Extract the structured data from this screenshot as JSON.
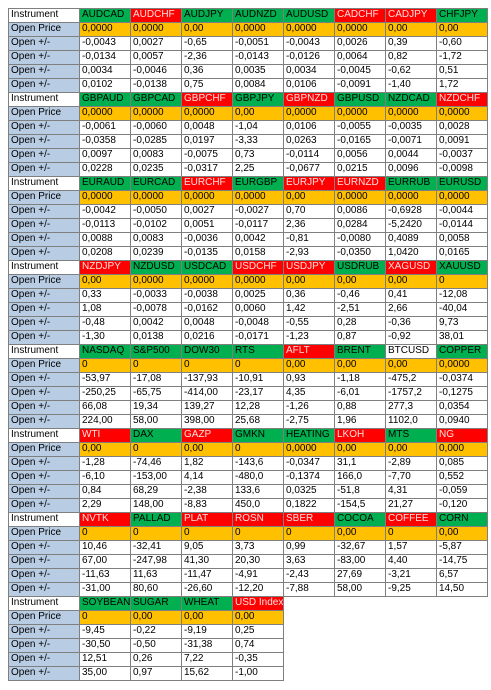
{
  "blocks": [
    {
      "header": [
        "Instrument",
        "AUDCAD",
        "AUDCHF",
        "AUDJPY",
        "AUDNZD",
        "AUDUSD",
        "CADCHF",
        "CADJPY",
        "CHFJPY"
      ],
      "header_colors": [
        "#ffffff",
        "#00b050",
        "#ff0000",
        "#00b050",
        "#00b050",
        "#00b050",
        "#ff0000",
        "#ff0000",
        "#00b050"
      ],
      "rows": [
        [
          "Open Price",
          "0,0000",
          "0,0000",
          "0,00",
          "0,0000",
          "0,0000",
          "0,0000",
          "0,00",
          "0,00"
        ],
        [
          "Open +/-",
          "-0,0043",
          "0,0027",
          "-0,65",
          "-0,0051",
          "-0,0043",
          "0,0026",
          "0,39",
          "-0,60"
        ],
        [
          "Open +/-",
          "-0,0134",
          "0,0057",
          "-2,36",
          "-0,0143",
          "-0,0126",
          "0,0064",
          "0,82",
          "-1,72"
        ],
        [
          "Open +/-",
          "0,0034",
          "-0,0046",
          "0,36",
          "0,0035",
          "0,0034",
          "-0,0045",
          "-0,62",
          "0,51"
        ],
        [
          "Open +/-",
          "0,0102",
          "-0,0138",
          "0,75",
          "0,0084",
          "0,0106",
          "-0,0091",
          "-1,40",
          "1,72"
        ]
      ]
    },
    {
      "header": [
        "Instrument",
        "GBPAUD",
        "GBPCAD",
        "GBPCHF",
        "GBPJPY",
        "GBPNZD",
        "GBPUSD",
        "NZDCAD",
        "NZDCHF"
      ],
      "header_colors": [
        "#ffffff",
        "#00b050",
        "#00b050",
        "#ff0000",
        "#00b050",
        "#ff0000",
        "#00b050",
        "#00b050",
        "#ff0000"
      ],
      "rows": [
        [
          "Open Price",
          "0,0000",
          "0,0000",
          "0,0000",
          "0,00",
          "0,0000",
          "0,0000",
          "0,0000",
          "0,0000"
        ],
        [
          "Open +/-",
          "-0,0061",
          "-0,0060",
          "0,0048",
          "-1,04",
          "0,0106",
          "-0,0055",
          "-0,0035",
          "0,0028"
        ],
        [
          "Open +/-",
          "-0,0358",
          "-0,0285",
          "0,0197",
          "-3,33",
          "0,0263",
          "-0,0165",
          "-0,0071",
          "0,0091"
        ],
        [
          "Open +/-",
          "0,0097",
          "0,0083",
          "-0,0075",
          "0,73",
          "-0,0114",
          "0,0056",
          "0,0044",
          "-0,0037"
        ],
        [
          "Open +/-",
          "0,0228",
          "0,0235",
          "-0,0317",
          "2,25",
          "-0,0677",
          "0,0215",
          "0,0096",
          "-0,0098"
        ]
      ]
    },
    {
      "header": [
        "Instrument",
        "EURAUD",
        "EURCAD",
        "EURCHF",
        "EURGBP",
        "EURJPY",
        "EURNZD",
        "EURRUB",
        "EURUSD"
      ],
      "header_colors": [
        "#ffffff",
        "#00b050",
        "#00b050",
        "#ff0000",
        "#00b050",
        "#ff0000",
        "#ff0000",
        "#00b050",
        "#00b050"
      ],
      "rows": [
        [
          "Open Price",
          "0,0000",
          "0,0000",
          "0,0000",
          "0,0000",
          "0,00",
          "0,0000",
          "0,0000",
          "0,0000"
        ],
        [
          "Open +/-",
          "-0,0042",
          "-0,0050",
          "0,0027",
          "-0,0027",
          "0,70",
          "0,0086",
          "-0,6928",
          "-0,0044"
        ],
        [
          "Open +/-",
          "-0,0113",
          "-0,0102",
          "0,0051",
          "-0,0117",
          "2,36",
          "0,0284",
          "-5,2420",
          "-0,0144"
        ],
        [
          "Open +/-",
          "0,0088",
          "0,0083",
          "-0,0036",
          "0,0042",
          "-0,81",
          "-0,0080",
          "0,4089",
          "0,0058"
        ],
        [
          "Open +/-",
          "0,0208",
          "0,0239",
          "-0,0135",
          "0,0158",
          "-2,93",
          "-0,0350",
          "1,0420",
          "0,0165"
        ]
      ]
    },
    {
      "header": [
        "Instrument",
        "NZDJPY",
        "NZDUSD",
        "USDCAD",
        "USDCHF",
        "USDJPY",
        "USDRUB",
        "XAGUSD",
        "XAUUSD"
      ],
      "header_colors": [
        "#ffffff",
        "#ff0000",
        "#00b050",
        "#00b050",
        "#ff0000",
        "#ff0000",
        "#00b050",
        "#ff0000",
        "#00b050"
      ],
      "rows": [
        [
          "Open Price",
          "0,00",
          "0,0000",
          "0,0000",
          "0,0000",
          "0,00",
          "0,00",
          "0,00",
          "0"
        ],
        [
          "Open +/-",
          "0,33",
          "-0,0033",
          "-0,0038",
          "0,0025",
          "0,36",
          "-0,46",
          "0,41",
          "-12,08"
        ],
        [
          "Open +/-",
          "1,08",
          "-0,0078",
          "-0,0162",
          "0,0060",
          "1,42",
          "-2,51",
          "2,66",
          "-40,04"
        ],
        [
          "Open +/-",
          "-0,48",
          "0,0042",
          "0,0048",
          "-0,0048",
          "-0,55",
          "0,28",
          "-0,36",
          "9,73"
        ],
        [
          "Open +/-",
          "-1,30",
          "0,0138",
          "0,0216",
          "-0,0171",
          "-1,23",
          "0,87",
          "-0,92",
          "38,01"
        ]
      ]
    },
    {
      "header": [
        "Instrument",
        "NASDAQ",
        "S&P500",
        "DOW30",
        "RTS",
        "AFLT",
        "BRENT",
        "BTCUSD",
        "COPPER"
      ],
      "header_colors": [
        "#ffffff",
        "#00b050",
        "#00b050",
        "#00b050",
        "#00b050",
        "#ff0000",
        "#00b050",
        "#ffffff",
        "#00b050"
      ],
      "rows": [
        [
          "Open Price",
          "0",
          "0",
          "0",
          "0",
          "0,00",
          "0,00",
          "0,00",
          "0,0000"
        ],
        [
          "Open +/-",
          "-53,97",
          "-17,08",
          "-137,93",
          "-10,91",
          "0,93",
          "-1,18",
          "-475,2",
          "-0,0374"
        ],
        [
          "Open +/-",
          "-250,25",
          "-65,75",
          "-414,00",
          "-23,17",
          "4,35",
          "-6,01",
          "-1757,2",
          "-0,1275"
        ],
        [
          "Open +/-",
          "66,08",
          "19,34",
          "139,27",
          "12,28",
          "-1,26",
          "0,88",
          "277,3",
          "0,0354"
        ],
        [
          "Open +/-",
          "224,00",
          "58,00",
          "398,00",
          "25,68",
          "-2,75",
          "1,96",
          "1102,0",
          "0,0940"
        ]
      ]
    },
    {
      "header": [
        "Instrument",
        "WTI",
        "DAX",
        "GAZP",
        "GMKN",
        "HEATING",
        "LKOH",
        "MTS",
        "NG"
      ],
      "header_colors": [
        "#ffffff",
        "#ff0000",
        "#00b050",
        "#ff0000",
        "#00b050",
        "#00b050",
        "#ff0000",
        "#00b050",
        "#ff0000"
      ],
      "rows": [
        [
          "Open Price",
          "0,00",
          "0",
          "0,00",
          "0",
          "0,0000",
          "0,00",
          "0,00",
          "0,000"
        ],
        [
          "Open +/-",
          "-1,28",
          "-74,46",
          "1,82",
          "-143,6",
          "-0,0347",
          "31,1",
          "-2,89",
          "0,085"
        ],
        [
          "Open +/-",
          "-6,10",
          "-153,00",
          "4,14",
          "-480,0",
          "-0,1374",
          "166,0",
          "-7,70",
          "0,552"
        ],
        [
          "Open +/-",
          "0,84",
          "68,29",
          "-2,38",
          "133,6",
          "0,0325",
          "-51,8",
          "4,31",
          "-0,059"
        ],
        [
          "Open +/-",
          "2,29",
          "148,00",
          "-8,83",
          "450,0",
          "0,1822",
          "-154,5",
          "21,27",
          "-0,120"
        ]
      ]
    },
    {
      "header": [
        "Instrument",
        "NVTK",
        "PALLAD",
        "PLAT",
        "ROSN",
        "SBER",
        "COCOA",
        "COFFEE",
        "CORN"
      ],
      "header_colors": [
        "#ffffff",
        "#ff0000",
        "#00b050",
        "#ff0000",
        "#ff0000",
        "#ff0000",
        "#00b050",
        "#ff0000",
        "#00b050"
      ],
      "rows": [
        [
          "Open Price",
          "0",
          "0",
          "0",
          "0",
          "0",
          "0,00",
          "0",
          "0,00"
        ],
        [
          "Open +/-",
          "10,46",
          "-32,41",
          "9,05",
          "3,73",
          "0,99",
          "-32,67",
          "1,57",
          "-5,87"
        ],
        [
          "Open +/-",
          "67,00",
          "-247,98",
          "41,30",
          "20,30",
          "3,63",
          "-83,00",
          "4,40",
          "-14,75"
        ],
        [
          "Open +/-",
          "-11,63",
          "11,63",
          "-11,47",
          "-4,91",
          "-2,43",
          "27,69",
          "-3,21",
          "6,57"
        ],
        [
          "Open +/-",
          "-31,00",
          "80,60",
          "-26,60",
          "-12,20",
          "-7,88",
          "58,00",
          "-9,25",
          "14,50"
        ]
      ]
    },
    {
      "header": [
        "Instrument",
        "SOYBEAN",
        "SUGAR",
        "WHEAT",
        "USD Index"
      ],
      "header_colors": [
        "#ffffff",
        "#00b050",
        "#00b050",
        "#00b050",
        "#ff0000"
      ],
      "rows": [
        [
          "Open Price",
          "0",
          "0,00",
          "0,00",
          "0,00"
        ],
        [
          "Open +/-",
          "-9,45",
          "-0,22",
          "-9,19",
          "0,25"
        ],
        [
          "Open +/-",
          "-30,50",
          "-0,50",
          "-31,38",
          "0,74"
        ],
        [
          "Open +/-",
          "12,51",
          "0,26",
          "7,22",
          "-0,35"
        ],
        [
          "Open +/-",
          "35,00",
          "0,97",
          "15,62",
          "-1,00"
        ]
      ]
    }
  ]
}
